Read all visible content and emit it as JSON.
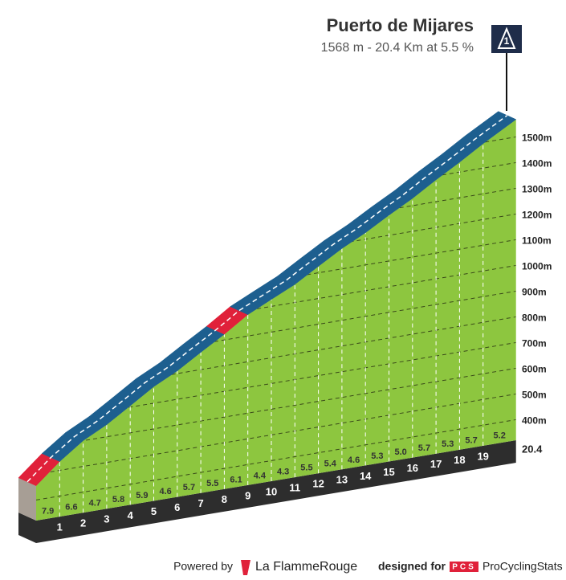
{
  "chart_data": {
    "type": "climb-profile",
    "title": "Puerto de Mijares",
    "subtitle": "1568 m - 20.4 Km at 5.5 %",
    "summit_marker": "1",
    "elevation_end": 1568,
    "xlim": [
      0,
      20.4
    ],
    "xticks": [
      1,
      2,
      3,
      4,
      5,
      6,
      7,
      8,
      9,
      10,
      11,
      12,
      13,
      14,
      15,
      16,
      17,
      18,
      19,
      20.4
    ],
    "values": [
      7.9,
      6.6,
      4.7,
      5.8,
      5.9,
      4.6,
      5.7,
      5.5,
      6.1,
      4.4,
      4.3,
      5.5,
      5.4,
      4.6,
      5.3,
      5.0,
      5.7,
      5.3,
      5.7,
      5.2
    ],
    "value_labels": [
      "7.9",
      "6.6",
      "4.7",
      "5.8",
      "5.9",
      "4.6",
      "5.7",
      "5.5",
      "6.1",
      "4.4",
      "4.3",
      "5.5",
      "5.4",
      "4.6",
      "5.3",
      "5.0",
      "5.7",
      "5.3",
      "5.7",
      "5.2"
    ],
    "road_colors": [
      "#e0213a",
      "#1d5f8f",
      "#1d5f8f",
      "#1d5f8f",
      "#1d5f8f",
      "#1d5f8f",
      "#1d5f8f",
      "#1d5f8f",
      "#e0213a",
      "#1d5f8f",
      "#1d5f8f",
      "#1d5f8f",
      "#1d5f8f",
      "#1d5f8f",
      "#1d5f8f",
      "#1d5f8f",
      "#1d5f8f",
      "#1d5f8f",
      "#1d5f8f",
      "#1d5f8f"
    ],
    "color": "#8dc63f",
    "ylim": [
      320,
      1600
    ],
    "yticks": [
      {
        "value": 400,
        "label": "400m"
      },
      {
        "value": 500,
        "label": "500m"
      },
      {
        "value": 600,
        "label": "600m"
      },
      {
        "value": 700,
        "label": "700m"
      },
      {
        "value": 800,
        "label": "800m"
      },
      {
        "value": 900,
        "label": "900m"
      },
      {
        "value": 1000,
        "label": "1000m"
      },
      {
        "value": 1100,
        "label": "1100m"
      },
      {
        "value": 1200,
        "label": "1200m"
      },
      {
        "value": 1300,
        "label": "1300m"
      },
      {
        "value": 1400,
        "label": "1400m"
      },
      {
        "value": 1500,
        "label": "1500m"
      }
    ],
    "grid": true
  },
  "footer": {
    "powered": "Powered by",
    "brand": "La FlammeRouge",
    "designed": "designed for",
    "pcs": "PCS",
    "site": "ProCyclingStats"
  }
}
